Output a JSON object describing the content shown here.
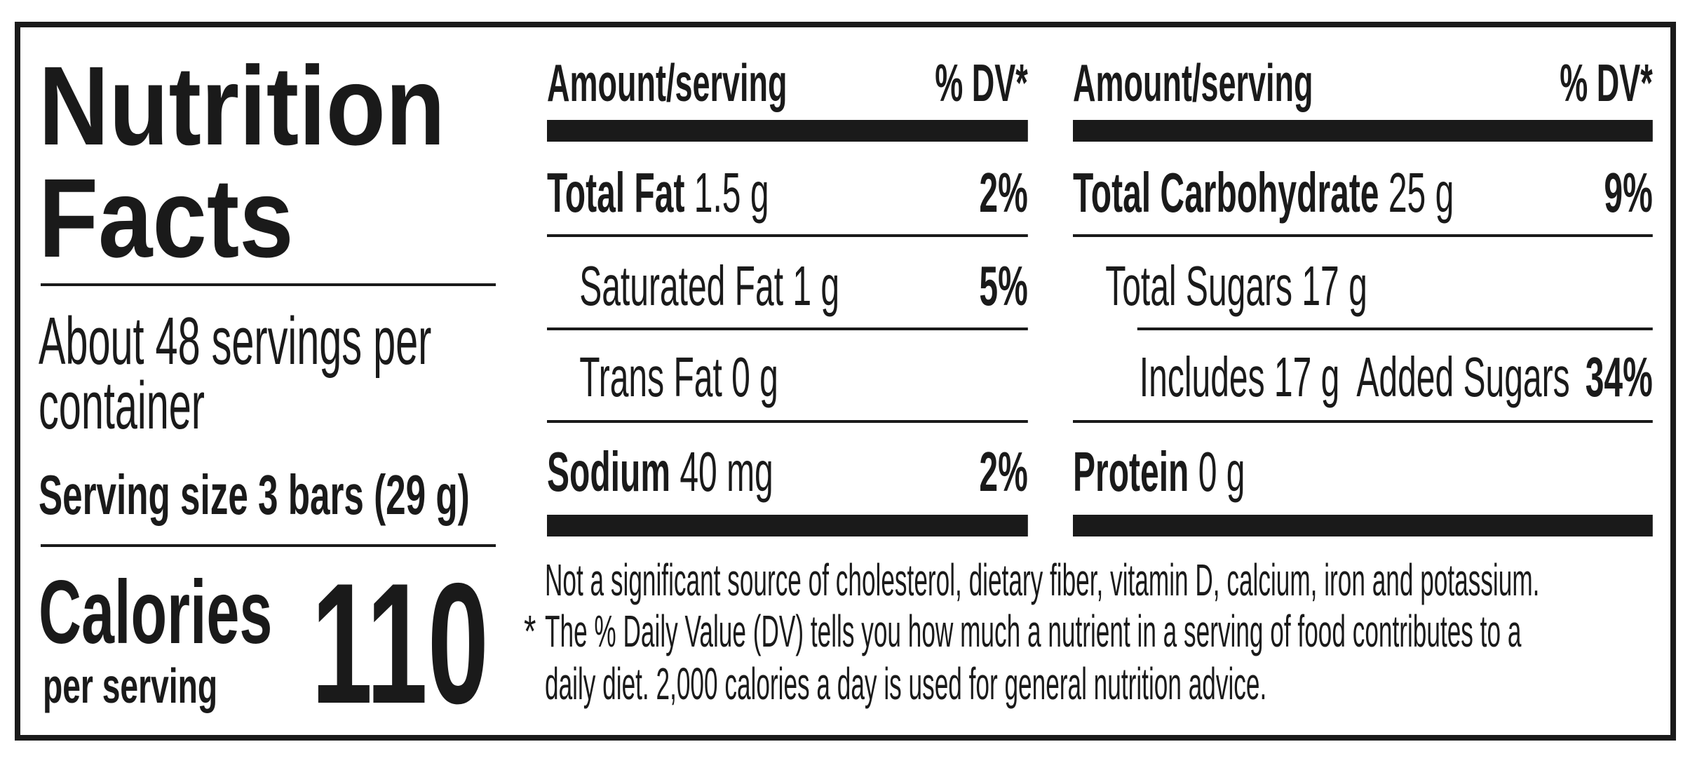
{
  "title_line1": "Nutrition",
  "title_line2": "Facts",
  "servings_line1": "About 48 servings per",
  "servings_line2": "container",
  "serving_size": "Serving size 3 bars (29 g)",
  "calories_label": "Calories",
  "calories_sub": "per serving",
  "calories_value": "110",
  "left_table": {
    "header_amount": "Amount/serving",
    "header_dv": "% DV*",
    "rows": [
      {
        "name": "Total Fat",
        "amount": "1.5 g",
        "dv": "2%"
      },
      {
        "name": "Saturated Fat 1 g",
        "amount": "",
        "dv": "5%"
      },
      {
        "name": "Trans Fat 0 g",
        "amount": "",
        "dv": ""
      },
      {
        "name": "Sodium",
        "amount": "40 mg",
        "dv": "2%"
      }
    ]
  },
  "right_table": {
    "header_amount": "Amount/serving",
    "header_dv": "% DV*",
    "rows": [
      {
        "name": "Total Carbohydrate",
        "amount": "25 g",
        "dv": "9%"
      },
      {
        "name": "Total Sugars 17 g",
        "amount": "",
        "dv": ""
      },
      {
        "name": "Includes 17 g  Added Sugars",
        "amount": "",
        "dv": "34%"
      },
      {
        "name": "Protein",
        "amount": "0 g",
        "dv": ""
      }
    ]
  },
  "footnote": {
    "line1": "Not a significant source of cholesterol, dietary fiber, vitamin D, calcium, iron and potassium.",
    "asterisk": "*",
    "line2": "The % Daily Value (DV) tells you how much a nutrient in a serving of food contributes to a",
    "line3": "daily diet. 2,000 calories a day is used for general nutrition advice."
  }
}
